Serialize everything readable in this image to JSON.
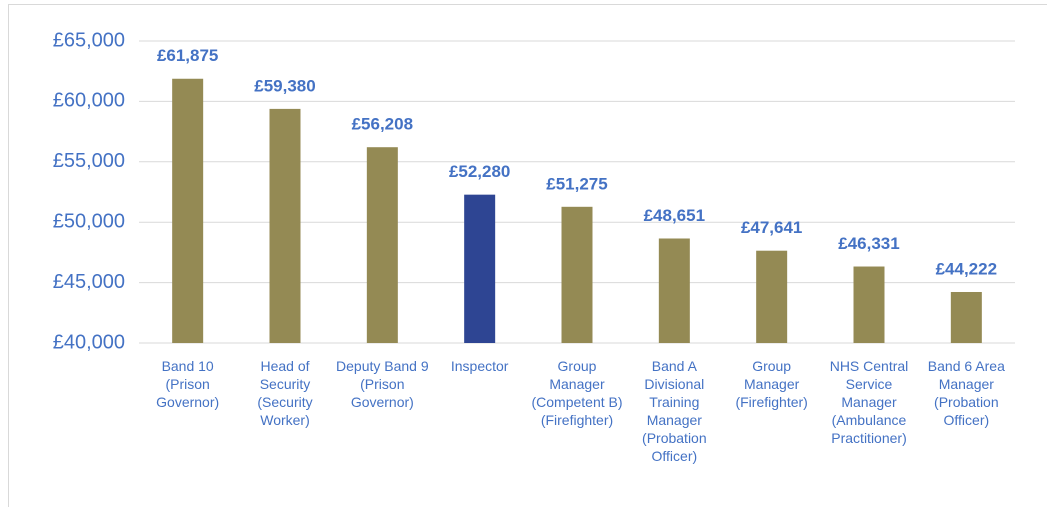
{
  "chart_data": {
    "type": "bar",
    "categories": [
      "Band 10 (Prison Governor)",
      "Head of Security (Security Worker)",
      "Deputy Band 9 (Prison Governor)",
      "Inspector",
      "Group Manager (Competent B) (Firefighter)",
      "Band A Divisional Training Manager (Probation Officer)",
      "Group Manager (Firefighter)",
      "NHS Central Service Manager (Ambulance Practitioner)",
      "Band 6 Area Manager (Probation Officer)"
    ],
    "values": [
      61875,
      59380,
      56208,
      52280,
      51275,
      48651,
      47641,
      46331,
      44222
    ],
    "value_labels": [
      "£61,875",
      "£59,380",
      "£56,208",
      "£52,280",
      "£51,275",
      "£48,651",
      "£47,641",
      "£46,331",
      "£44,222"
    ],
    "colors": [
      "#948a54",
      "#948a54",
      "#948a54",
      "#2e4593",
      "#948a54",
      "#948a54",
      "#948a54",
      "#948a54",
      "#948a54"
    ],
    "ylim": [
      40000,
      65000
    ],
    "yticks": [
      {
        "value": 40000,
        "label": "£40,000"
      },
      {
        "value": 45000,
        "label": "£45,000"
      },
      {
        "value": 50000,
        "label": "£50,000"
      },
      {
        "value": 55000,
        "label": "£55,000"
      },
      {
        "value": 60000,
        "label": "£60,000"
      },
      {
        "value": 65000,
        "label": "£65,000"
      }
    ],
    "grid": true
  }
}
